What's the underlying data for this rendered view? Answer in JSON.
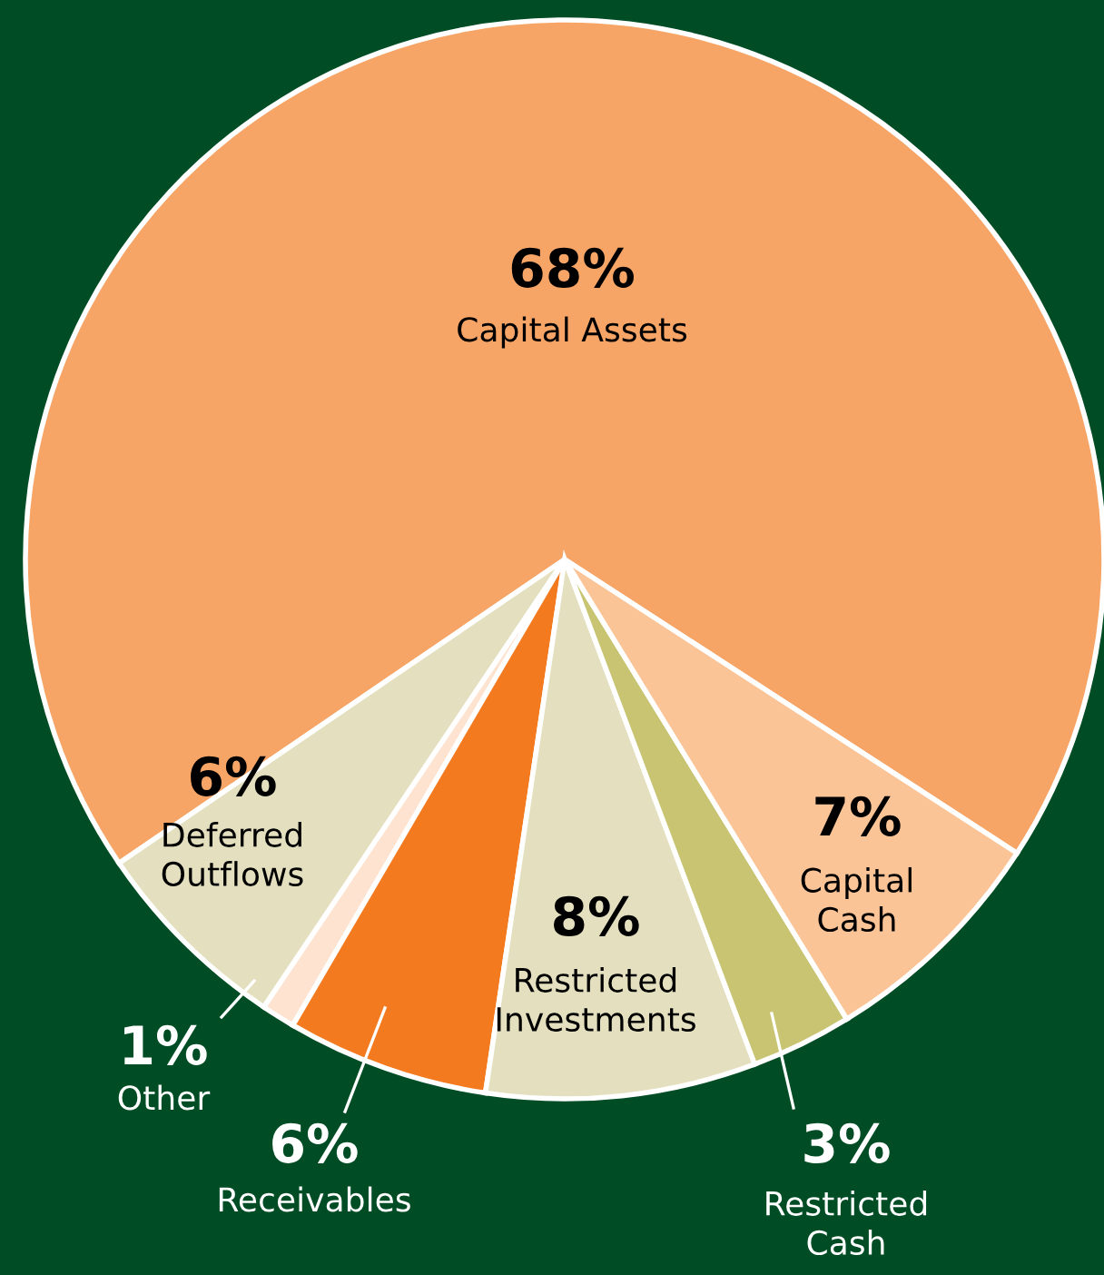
{
  "chart_data": {
    "type": "pie",
    "categories": [
      "Capital Assets",
      "Deferred\nOutflows",
      "Other",
      "Receivables",
      "Restricted\nInvestments",
      "Restricted\nCash",
      "Capital\nCash"
    ],
    "values": [
      68,
      6,
      1,
      6,
      8,
      3,
      7
    ],
    "value_labels": [
      "68%",
      "6%",
      "1%",
      "6%",
      "8%",
      "3%",
      "7%"
    ],
    "colors": [
      "#f7a566",
      "#e4e0bf",
      "#fde3d0",
      "#f47a20",
      "#e4e0bf",
      "#c8c472",
      "#fbc497"
    ],
    "legend": false
  }
}
